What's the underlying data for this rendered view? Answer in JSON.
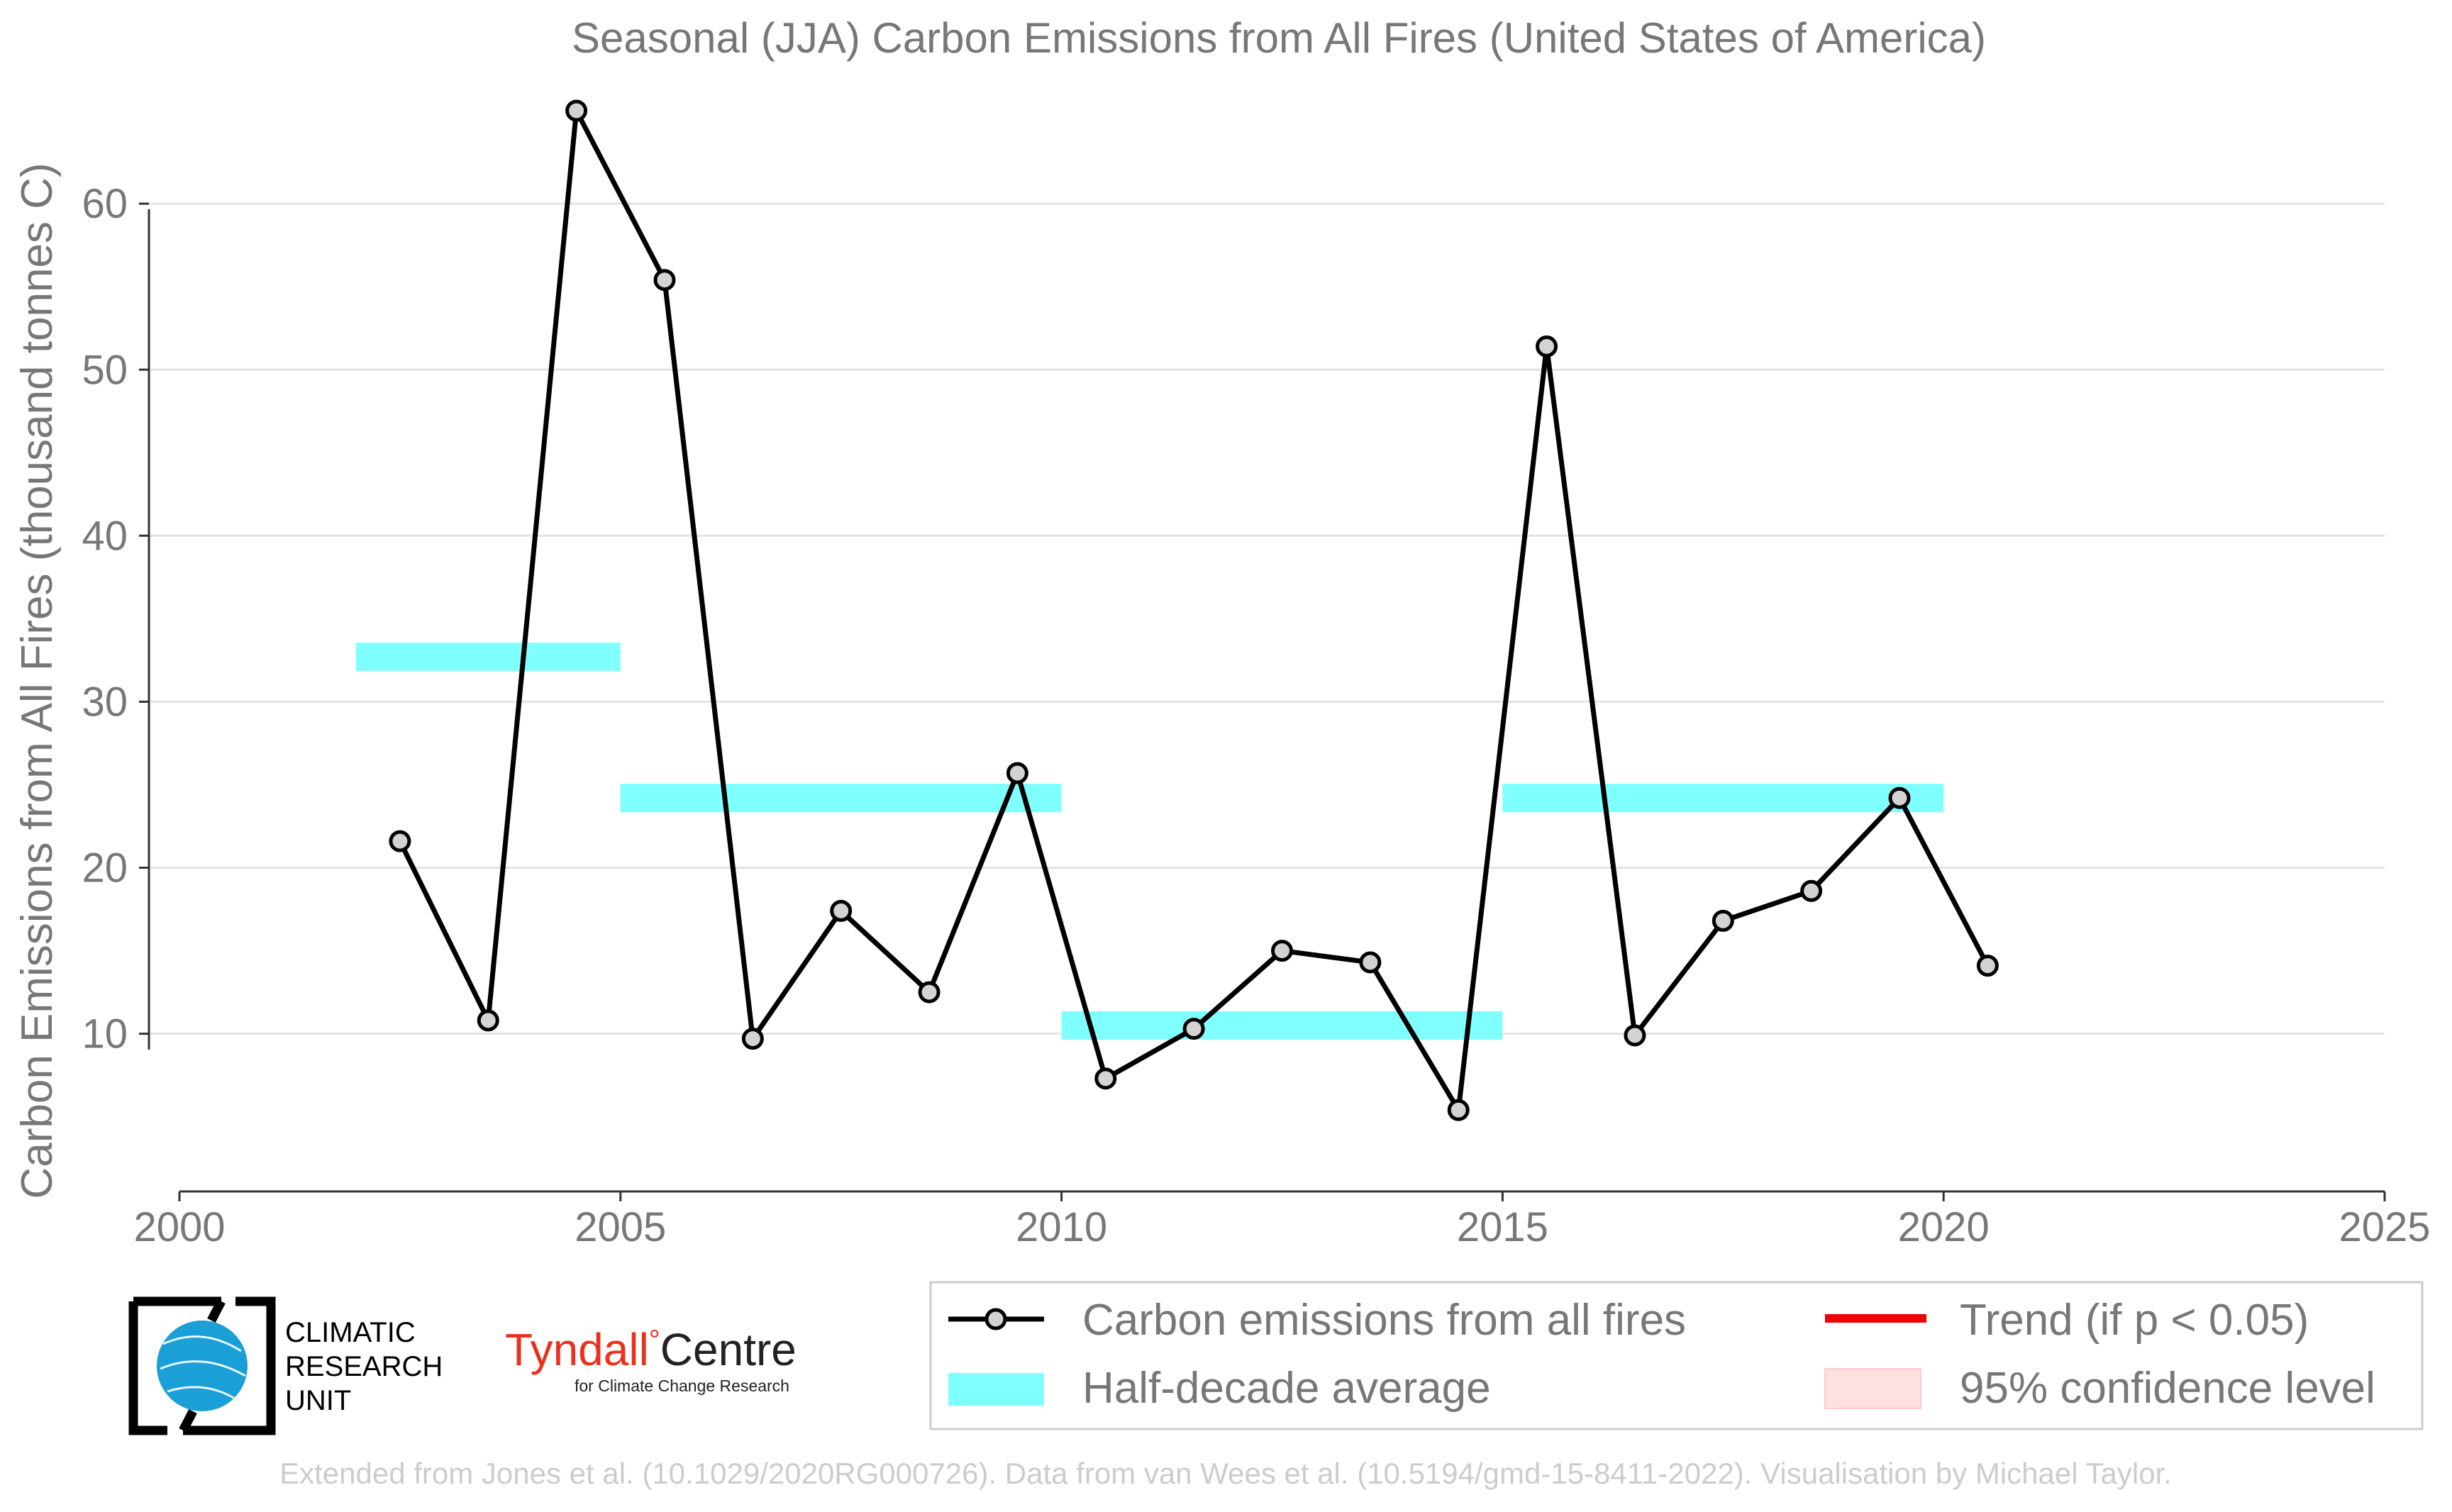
{
  "chart_data": {
    "type": "line",
    "title": "Seasonal (JJA) Carbon Emissions from All Fires (United States of America)",
    "xlabel": "",
    "ylabel": "Carbon Emissions from All Fires (thousand tonnes C)",
    "xlim": [
      2000,
      2025
    ],
    "ylim": [
      0.5,
      66.5
    ],
    "x_ticks": [
      2000,
      2005,
      2010,
      2015,
      2020,
      2025
    ],
    "y_ticks": [
      10,
      20,
      30,
      40,
      50,
      60
    ],
    "grid": "horizontal",
    "legend_position": "bottom-right",
    "series": [
      {
        "name": "Carbon emissions from all fires",
        "color": "#000000",
        "marker_fill": "#d3d3d3",
        "x": [
          2002.5,
          2003.5,
          2004.5,
          2005.5,
          2006.5,
          2007.5,
          2008.5,
          2009.5,
          2010.5,
          2011.5,
          2012.5,
          2013.5,
          2014.5,
          2015.5,
          2016.5,
          2017.5,
          2018.5,
          2019.5,
          2020.5
        ],
        "values": [
          21.6,
          10.8,
          65.6,
          55.4,
          9.7,
          17.4,
          12.5,
          25.7,
          7.3,
          10.3,
          15.0,
          14.3,
          5.4,
          51.4,
          9.9,
          16.8,
          18.6,
          24.2,
          14.1
        ]
      },
      {
        "name": "Half-decade average",
        "color": "#80ffff",
        "segments": [
          {
            "x_start": 2002,
            "x_end": 2005,
            "value": 32.7
          },
          {
            "x_start": 2005,
            "x_end": 2010,
            "value": 24.2
          },
          {
            "x_start": 2010,
            "x_end": 2015,
            "value": 10.5
          },
          {
            "x_start": 2015,
            "x_end": 2020,
            "value": 24.2
          }
        ]
      }
    ],
    "legend": [
      {
        "label": "Carbon emissions from all fires",
        "kind": "line-marker",
        "color": "#000000"
      },
      {
        "label": "Trend (if p < 0.05)",
        "kind": "line",
        "color": "#ee0000"
      },
      {
        "label": "Half-decade average",
        "kind": "band",
        "color": "#80ffff"
      },
      {
        "label": "95% confidence level",
        "kind": "band",
        "color": "#ffe0e0"
      }
    ]
  },
  "logos": {
    "cru": {
      "line1": "CLIMATIC",
      "line2": "RESEARCH",
      "line3": "UNIT"
    },
    "tyndall": {
      "name": "Tyndall",
      "degree": "°",
      "centre": "Centre",
      "tagline": "for Climate Change Research"
    }
  },
  "footer": "Extended from Jones et al. (10.1029/2020RG000726). Data from van Wees et al. (10.5194/gmd-15-8411-2022). Visualisation by Michael Taylor."
}
